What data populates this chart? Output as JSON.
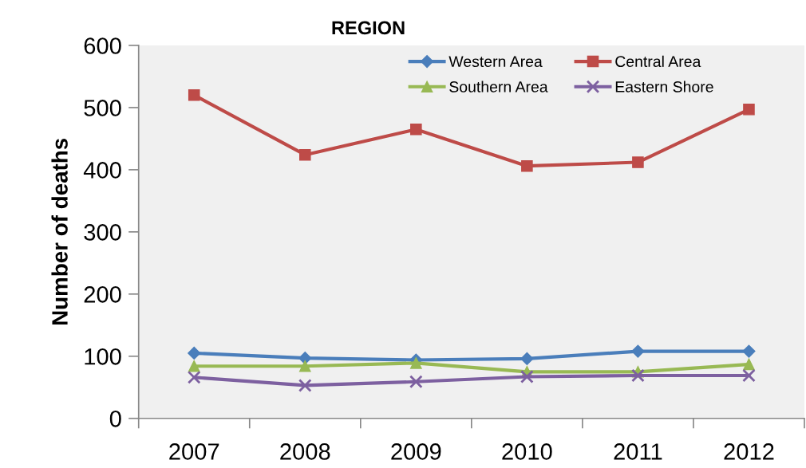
{
  "chart_data": {
    "type": "line",
    "title": "REGION",
    "ylabel": "Number of deaths",
    "categories": [
      "2007",
      "2008",
      "2009",
      "2010",
      "2011",
      "2012"
    ],
    "series": [
      {
        "name": "Western Area",
        "color": "#4a7ebb",
        "marker": "diamond",
        "values": [
          105,
          97,
          94,
          96,
          108,
          108
        ]
      },
      {
        "name": "Central Area",
        "color": "#be4b48",
        "marker": "square",
        "values": [
          520,
          424,
          465,
          406,
          412,
          497
        ]
      },
      {
        "name": "Southern Area",
        "color": "#98b954",
        "marker": "triangle",
        "values": [
          84,
          84,
          89,
          75,
          75,
          87
        ]
      },
      {
        "name": "Eastern Shore",
        "color": "#7d60a0",
        "marker": "cross",
        "values": [
          66,
          53,
          59,
          67,
          69,
          69
        ]
      }
    ],
    "ylim": [
      0,
      600
    ],
    "yticks": [
      0,
      100,
      200,
      300,
      400,
      500,
      600
    ],
    "grid": false,
    "legend": "top right",
    "line_style": "solid"
  }
}
